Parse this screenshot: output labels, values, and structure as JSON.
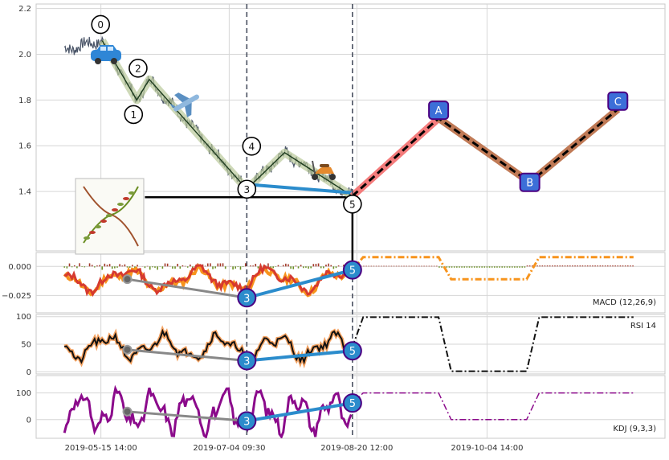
{
  "chart_data": {
    "type": "line",
    "x_tick_labels": [
      "2019-05-15 14:00",
      "2019-07-04 09:30",
      "2019-08-20 12:00",
      "2019-10-04 14:00"
    ],
    "panels": [
      {
        "id": "price",
        "ylim": [
          1.14,
          2.22
        ],
        "y_ticks": [
          1.4,
          1.6,
          1.8,
          2.0,
          2.2
        ],
        "y_tick_labels": [
          "1.4",
          "1.6",
          "1.8",
          "2.0",
          "2.2"
        ],
        "waves": [
          {
            "label": "0",
            "x": 0.105,
            "y": 2.06
          },
          {
            "label": "1",
            "x": 0.16,
            "y": 1.8
          },
          {
            "label": "2",
            "x": 0.18,
            "y": 1.89
          },
          {
            "label": "3",
            "x": 0.335,
            "y": 1.41
          },
          {
            "label": "4",
            "x": 0.395,
            "y": 1.57
          },
          {
            "label": "5",
            "x": 0.503,
            "y": 1.38
          }
        ],
        "prediction": [
          {
            "label": "A",
            "x": 0.64,
            "y": 1.72
          },
          {
            "label": "B",
            "x": 0.785,
            "y": 1.44
          },
          {
            "label": "C",
            "x": 0.925,
            "y": 1.76
          }
        ],
        "support_y": 1.375
      },
      {
        "id": "macd",
        "label": "MACD (12,26,9)",
        "ylim": [
          -0.04,
          0.012
        ],
        "y_ticks": [
          0.0,
          -0.025
        ],
        "y_tick_labels": [
          "0.000",
          "−0.025"
        ]
      },
      {
        "id": "rsi",
        "label": "RSI 14",
        "ylim": [
          -4,
          104
        ],
        "y_ticks": [
          0,
          50,
          100
        ],
        "y_tick_labels": [
          "0",
          "50",
          "100"
        ]
      },
      {
        "id": "kdj",
        "label": "KDJ (9,3,3)",
        "ylim": [
          -70,
          165
        ],
        "y_ticks": [
          0,
          100
        ],
        "y_tick_labels": [
          "0",
          "100"
        ]
      }
    ],
    "divergence": {
      "macd": {
        "labels": [
          "3",
          "5"
        ],
        "y": [
          -0.027,
          -0.003
        ],
        "ref_y": -0.011
      },
      "rsi": {
        "labels": [
          "3",
          "5"
        ],
        "y": [
          20,
          38
        ],
        "ref_y": 40
      },
      "kdj": {
        "labels": [
          "3",
          "5"
        ],
        "y": [
          -5,
          62
        ],
        "ref_y": 30
      }
    },
    "colors": {
      "price": "#4a5568",
      "wave_band": "#b9c99a",
      "bull_band": "#f47c7c",
      "bear_band": "#c07a56",
      "divergence": "#2b8ccc",
      "macd": "#d63a2f",
      "macd_signal": "#f7941d",
      "kdj": "#8b0a8b",
      "rsi": "#111111",
      "rsi_glow": "#f4a261",
      "label_fill": "#3c6fd8",
      "label_edge": "#4b0082"
    },
    "icons": [
      "car-icon",
      "airplane-icon",
      "scooter-icon",
      "plant-thumbnail"
    ]
  }
}
